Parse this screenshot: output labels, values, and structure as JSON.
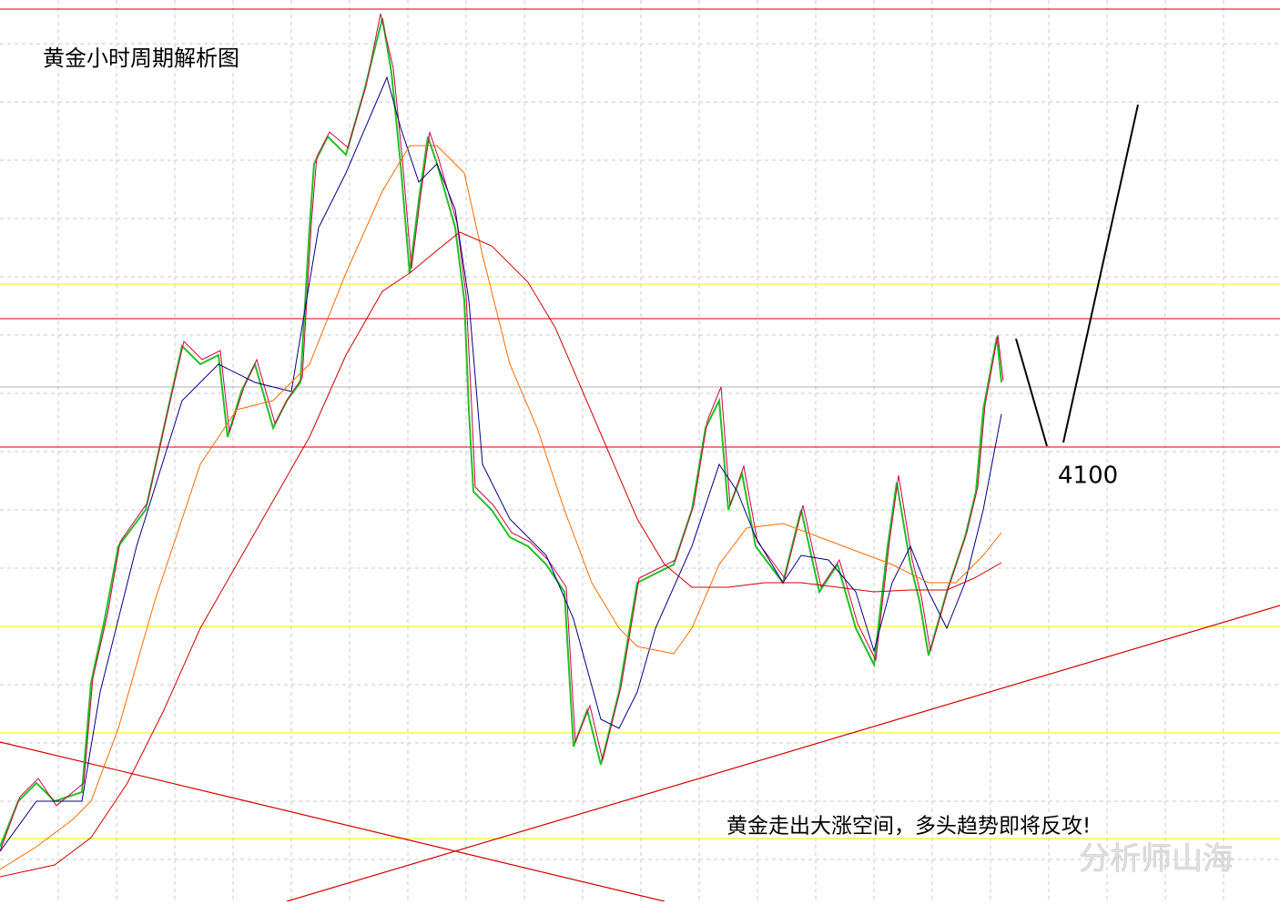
{
  "title": "黄金小时周期解析图",
  "level_label": "4100",
  "annotation": "黄金走出大涨空间，多头趋势即将反攻!",
  "watermark": "分析师山海"
}
